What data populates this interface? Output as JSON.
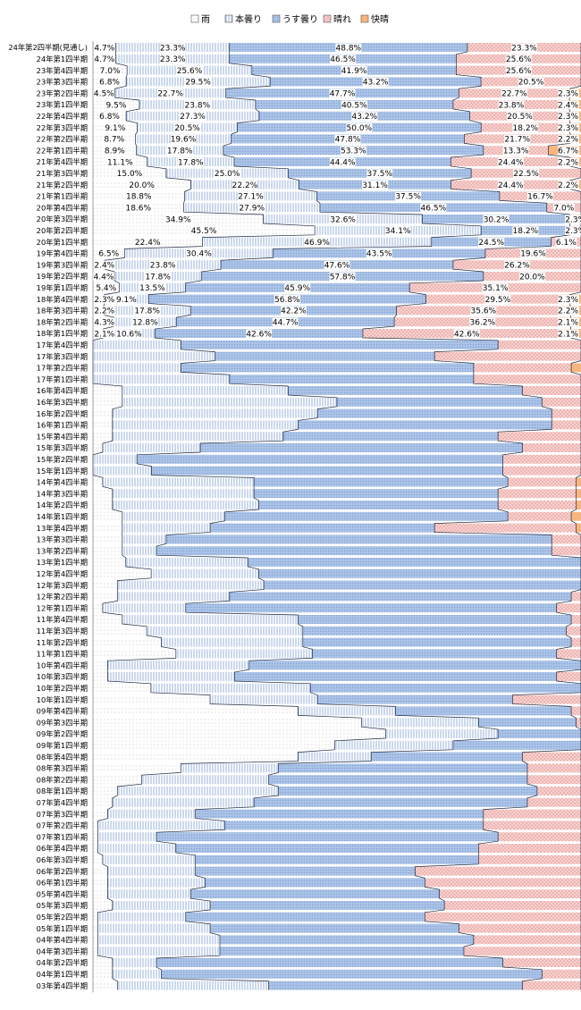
{
  "chart_data": {
    "type": "bar",
    "stacked": "percent",
    "orientation": "horizontal",
    "legend_position": "top",
    "grid": false,
    "xlim": [
      0,
      100
    ],
    "legend": [
      {
        "name": "雨",
        "color": "#ffffff",
        "pattern": "dots"
      },
      {
        "name": "本曇り",
        "color": "#ffffff",
        "pattern": "vlines"
      },
      {
        "name": "うす曇り",
        "color": "#a9c2e6",
        "pattern": "dots"
      },
      {
        "name": "晴れ",
        "color": "#f2c6c3",
        "pattern": "dots"
      },
      {
        "name": "快晴",
        "color": "#f7b67f",
        "pattern": "none"
      }
    ],
    "categories": [
      "24年第2四半期(見通し)",
      "24年第1四半期",
      "23年第4四半期",
      "23年第3四半期",
      "23年第2四半期",
      "23年第1四半期",
      "22年第4四半期",
      "22年第3四半期",
      "22年第2四半期",
      "22年第1四半期",
      "21年第4四半期",
      "21年第3四半期",
      "21年第2四半期",
      "21年第1四半期",
      "20年第4四半期",
      "20年第3四半期",
      "20年第2四半期",
      "20年第1四半期",
      "19年第4四半期",
      "19年第3四半期",
      "19年第2四半期",
      "19年第1四半期",
      "18年第4四半期",
      "18年第3四半期",
      "18年第2四半期",
      "18年第1四半期",
      "17年第4四半期",
      "17年第3四半期",
      "17年第2四半期",
      "17年第1四半期",
      "16年第4四半期",
      "16年第3四半期",
      "16年第2四半期",
      "16年第1四半期",
      "15年第4四半期",
      "15年第3四半期",
      "15年第2四半期",
      "15年第1四半期",
      "14年第4四半期",
      "14年第3四半期",
      "14年第2四半期",
      "14年第1四半期",
      "13年第4四半期",
      "13年第3四半期",
      "13年第2四半期",
      "13年第1四半期",
      "12年第4四半期",
      "12年第3四半期",
      "12年第2四半期",
      "12年第1四半期",
      "11年第4四半期",
      "11年第3四半期",
      "11年第2四半期",
      "11年第1四半期",
      "10年第4四半期",
      "10年第3四半期",
      "10年第2四半期",
      "10年第1四半期",
      "09年第4四半期",
      "09年第3四半期",
      "09年第2四半期",
      "09年第1四半期",
      "08年第4四半期",
      "08年第3四半期",
      "08年第2四半期",
      "08年第1四半期",
      "07年第4四半期",
      "07年第3四半期",
      "07年第2四半期",
      "07年第1四半期",
      "06年第4四半期",
      "06年第3四半期",
      "06年第2四半期",
      "06年第1四半期",
      "05年第4四半期",
      "05年第3四半期",
      "05年第2四半期",
      "05年第1四半期",
      "04年第4四半期",
      "04年第3四半期",
      "04年第2四半期",
      "04年第1四半期",
      "03年第4四半期"
    ],
    "series": [
      {
        "name": "雨",
        "values": [
          4.7,
          4.7,
          7.0,
          6.8,
          4.5,
          9.5,
          6.8,
          9.1,
          8.7,
          8.9,
          11.1,
          15.0,
          20.0,
          18.8,
          18.6,
          34.9,
          45.5,
          22.4,
          6.5,
          2.4,
          4.4,
          5.4,
          2.3,
          2.2,
          4.3,
          2.1,
          0,
          0,
          0,
          0,
          6,
          6,
          4,
          4,
          4,
          2,
          0,
          0,
          2,
          4,
          4,
          6,
          6,
          6,
          6,
          7,
          13,
          5,
          5,
          2,
          6,
          11,
          14,
          17,
          3,
          3,
          12,
          24,
          42,
          55,
          60,
          51,
          42,
          18,
          10,
          5,
          4,
          3,
          1,
          1,
          1,
          2,
          3,
          3,
          3,
          4,
          1,
          1,
          1,
          1,
          4,
          4,
          5
        ]
      },
      {
        "name": "本曇り",
        "values": [
          23.3,
          23.3,
          25.6,
          29.5,
          22.7,
          23.8,
          27.3,
          20.5,
          19.6,
          17.8,
          17.8,
          25.0,
          22.2,
          27.1,
          27.9,
          32.6,
          34.1,
          46.9,
          30.4,
          23.8,
          17.8,
          13.5,
          9.1,
          17.8,
          12.8,
          10.6,
          18,
          25,
          18,
          28,
          34,
          44,
          42,
          38,
          35,
          20,
          9,
          12,
          31,
          29,
          30,
          21,
          18,
          9,
          7,
          26,
          24,
          30,
          23,
          17,
          36,
          32,
          29,
          28,
          29,
          26,
          33,
          22,
          20,
          24,
          23,
          25,
          15,
          20,
          26,
          33,
          29,
          18,
          26,
          12,
          16,
          19,
          18,
          20,
          17,
          20,
          18,
          23,
          25,
          25,
          9,
          10,
          31
        ]
      },
      {
        "name": "うす曇り",
        "values": [
          48.8,
          46.5,
          41.9,
          43.2,
          47.7,
          40.5,
          43.2,
          50.0,
          47.8,
          53.3,
          44.4,
          37.5,
          31.1,
          37.5,
          46.5,
          30.2,
          18.2,
          24.5,
          43.5,
          47.6,
          57.8,
          45.9,
          56.8,
          42.2,
          44.7,
          42.6,
          65,
          45,
          60,
          50,
          48,
          42,
          48,
          52,
          44,
          66,
          75,
          72,
          52,
          50,
          49,
          58,
          46,
          79,
          81,
          71,
          72,
          65,
          70,
          76,
          56,
          54,
          55,
          50,
          68,
          66,
          56,
          40,
          36,
          20,
          17,
          27,
          31,
          51,
          53,
          53,
          56,
          59,
          53,
          70,
          62,
          58,
          45,
          45,
          51,
          48,
          49,
          51,
          52,
          50,
          71,
          78,
          52
        ]
      },
      {
        "name": "晴れ",
        "values": [
          23.3,
          25.6,
          25.6,
          20.5,
          22.7,
          23.8,
          20.5,
          18.2,
          21.7,
          13.3,
          24.4,
          22.5,
          24.4,
          16.7,
          7.0,
          2.3,
          2.3,
          6.1,
          19.6,
          26.2,
          20.0,
          35.1,
          29.5,
          35.6,
          36.2,
          42.6,
          17,
          30,
          20,
          22,
          12,
          8,
          6,
          6,
          17,
          12,
          16,
          16,
          14,
          16,
          16,
          13,
          29,
          6,
          6,
          0,
          -9,
          0,
          2,
          5,
          2,
          3,
          2,
          5,
          0,
          5,
          -1,
          14,
          2,
          1,
          0,
          -3,
          12,
          11,
          11,
          9,
          11,
          20,
          20,
          17,
          21,
          21,
          34,
          32,
          29,
          28,
          32,
          25,
          22,
          24,
          16,
          8,
          12
        ]
      },
      {
        "name": "快晴",
        "values": [
          0,
          0,
          0,
          0,
          2.3,
          2.4,
          2.3,
          2.3,
          2.2,
          6.7,
          2.2,
          0,
          2.2,
          0,
          0,
          0,
          0,
          0,
          0,
          0,
          0,
          0,
          2.3,
          2.2,
          2.1,
          2.1,
          0,
          0,
          2,
          0,
          0,
          0,
          0,
          0,
          0,
          0,
          0,
          0,
          1,
          1,
          1,
          2,
          1,
          0,
          0,
          0,
          0,
          0,
          0,
          0,
          0,
          0,
          0,
          0,
          0,
          0,
          0,
          0,
          0,
          0,
          0,
          0,
          0,
          0,
          0,
          0,
          0,
          0,
          0,
          0,
          0,
          0,
          0,
          0,
          0,
          0,
          0,
          0,
          0,
          0,
          0,
          0,
          0
        ]
      }
    ],
    "data_labels_rows": 26,
    "label_format": "{v}%"
  }
}
